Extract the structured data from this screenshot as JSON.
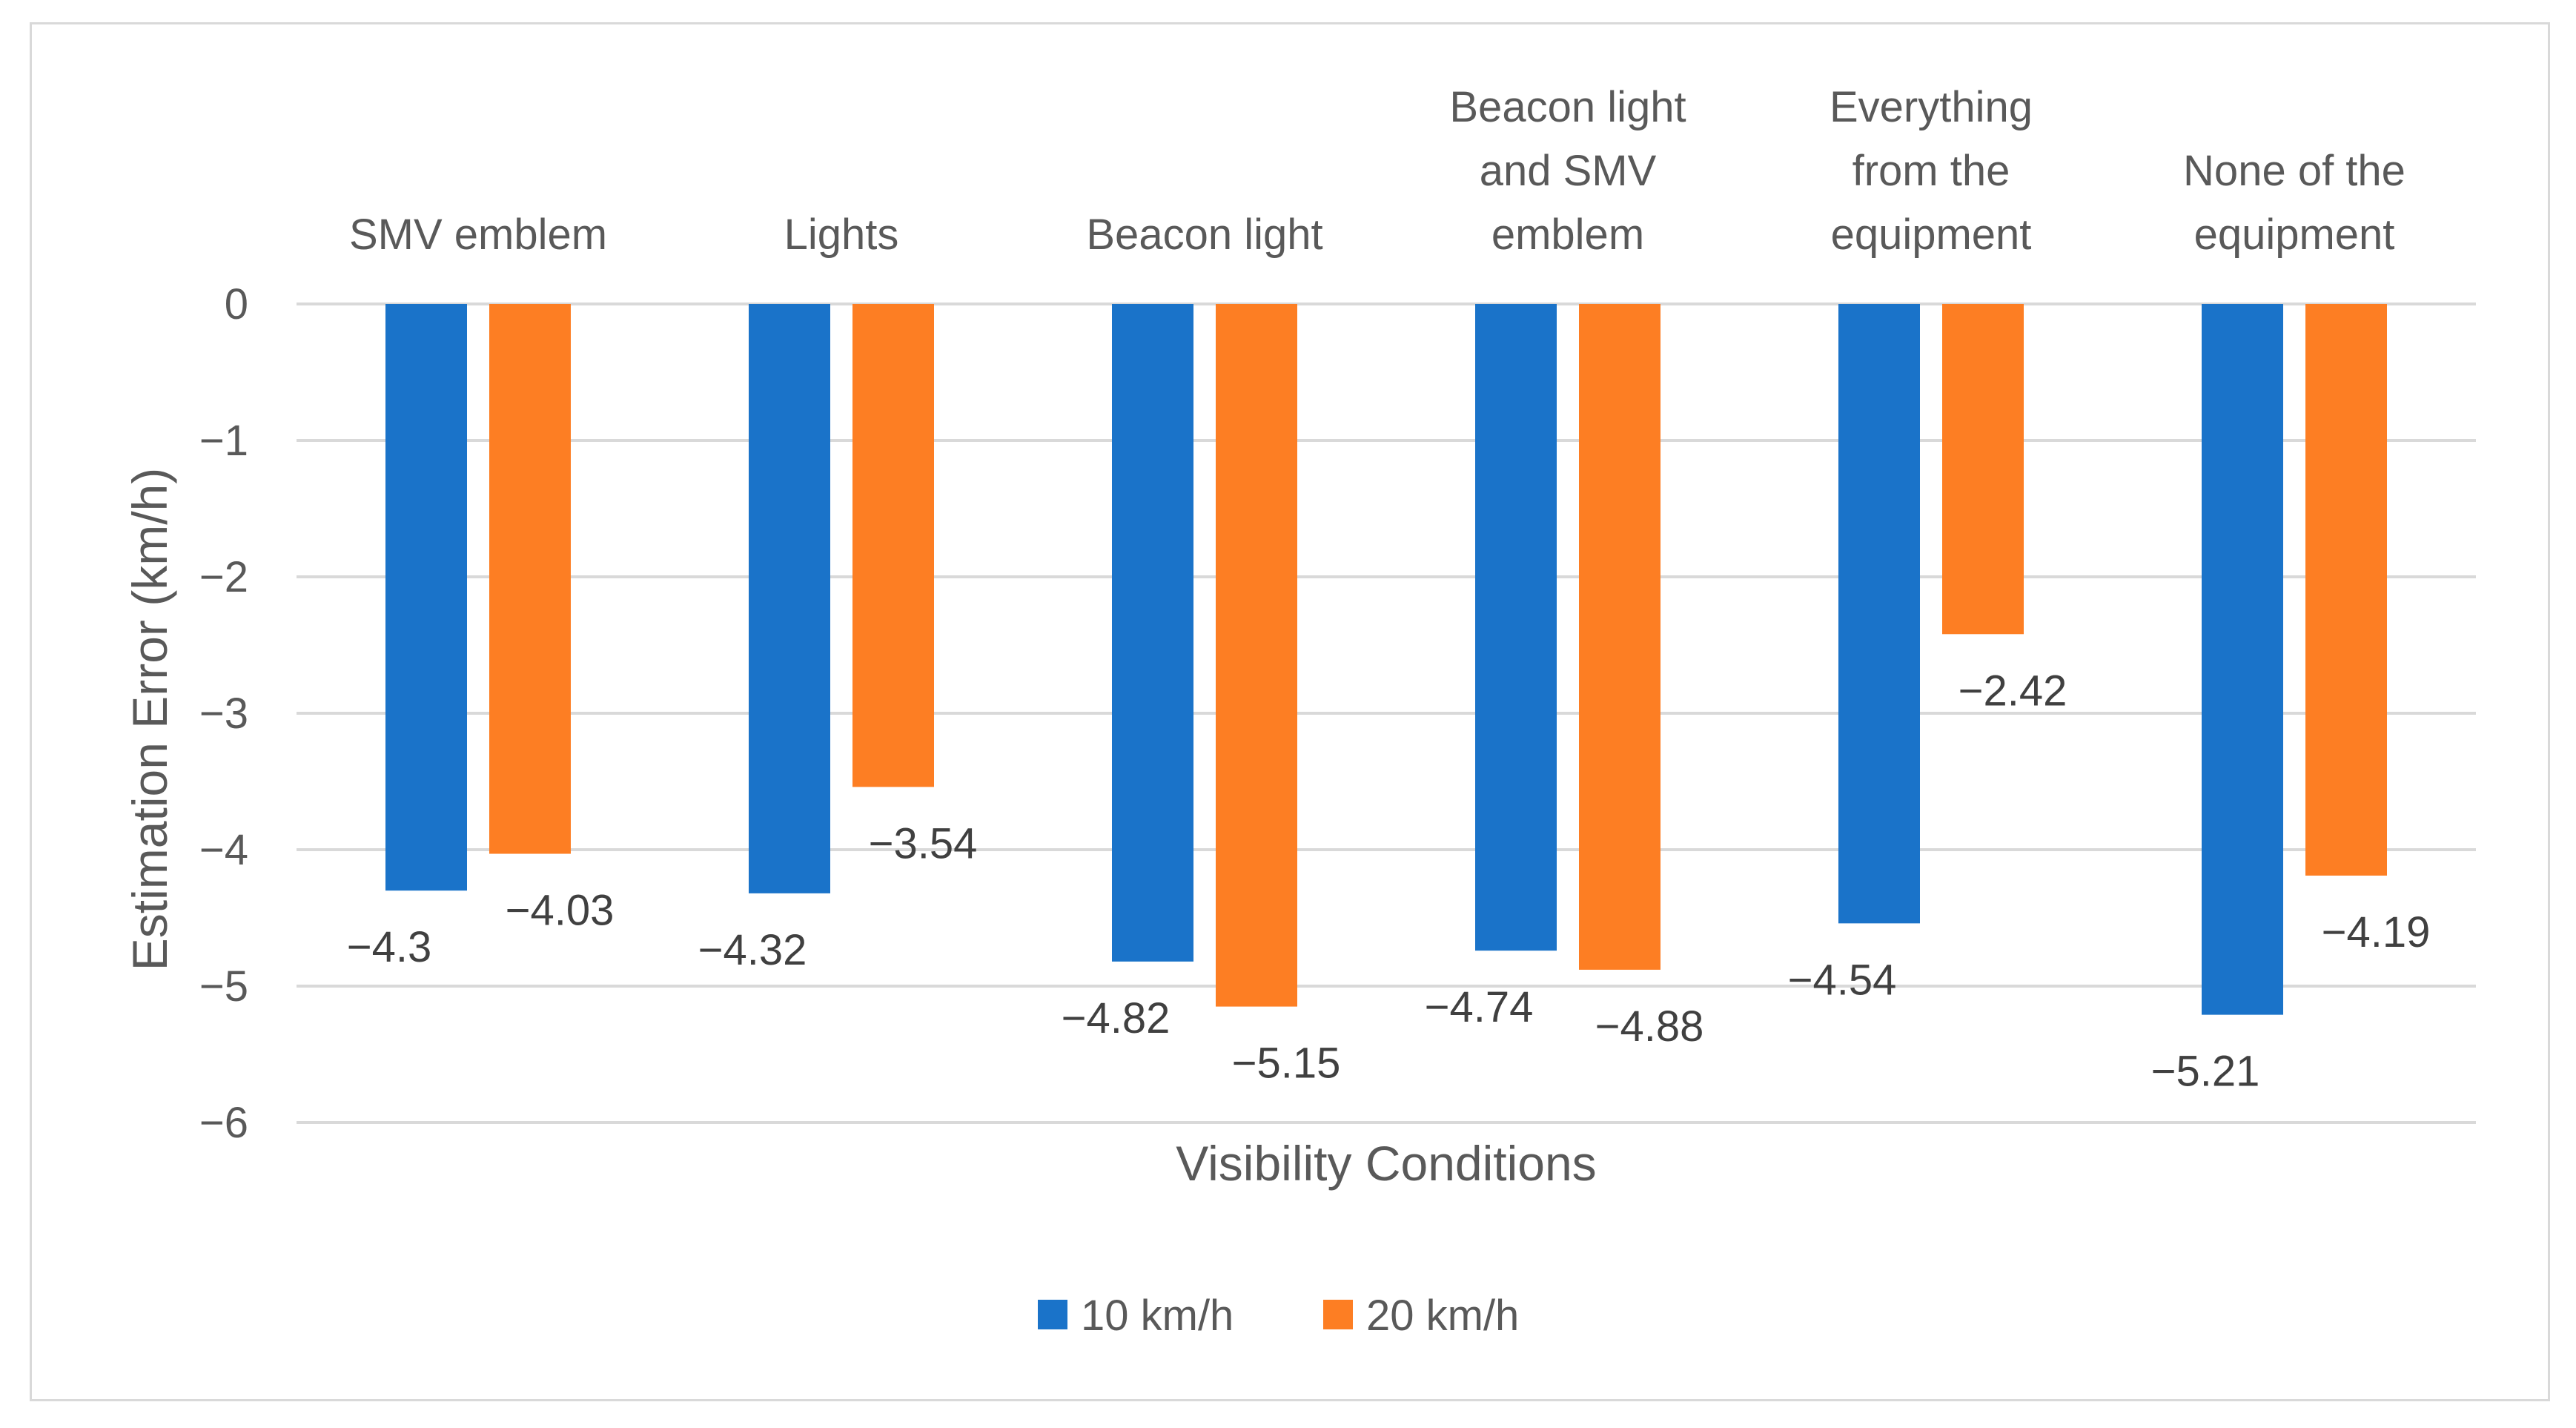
{
  "chart_data": {
    "type": "bar",
    "title": "",
    "xlabel": "Visibility Conditions",
    "ylabel": "Estimation Error (km/h)",
    "ylim": [
      -6,
      0
    ],
    "yticks": [
      0,
      -1,
      -2,
      -3,
      -4,
      -5,
      -6
    ],
    "ytick_labels": [
      "0",
      "−1",
      "−2",
      "−3",
      "−4",
      "−5",
      "−6"
    ],
    "categories": [
      [
        "SMV emblem"
      ],
      [
        "Lights"
      ],
      [
        "Beacon light"
      ],
      [
        "Beacon light",
        "and SMV",
        "emblem"
      ],
      [
        "Everything",
        "from the",
        "equipment"
      ],
      [
        "None of the",
        "equipment"
      ]
    ],
    "series": [
      {
        "name": "10 km/h",
        "color": "#1a73c9",
        "values": [
          -4.3,
          -4.32,
          -4.82,
          -4.74,
          -4.54,
          -5.21
        ],
        "labels": [
          "−4.3",
          "−4.32",
          "−4.82",
          "−4.74",
          "−4.54",
          "−5.21"
        ]
      },
      {
        "name": "20 km/h",
        "color": "#fd7e23",
        "values": [
          -4.03,
          -3.54,
          -5.15,
          -4.88,
          -2.42,
          -4.19
        ],
        "labels": [
          "−4.03",
          "−3.54",
          "−5.15",
          "−4.88",
          "−2.42",
          "−4.19"
        ]
      }
    ],
    "grid": true,
    "legend": "bottom-center"
  }
}
